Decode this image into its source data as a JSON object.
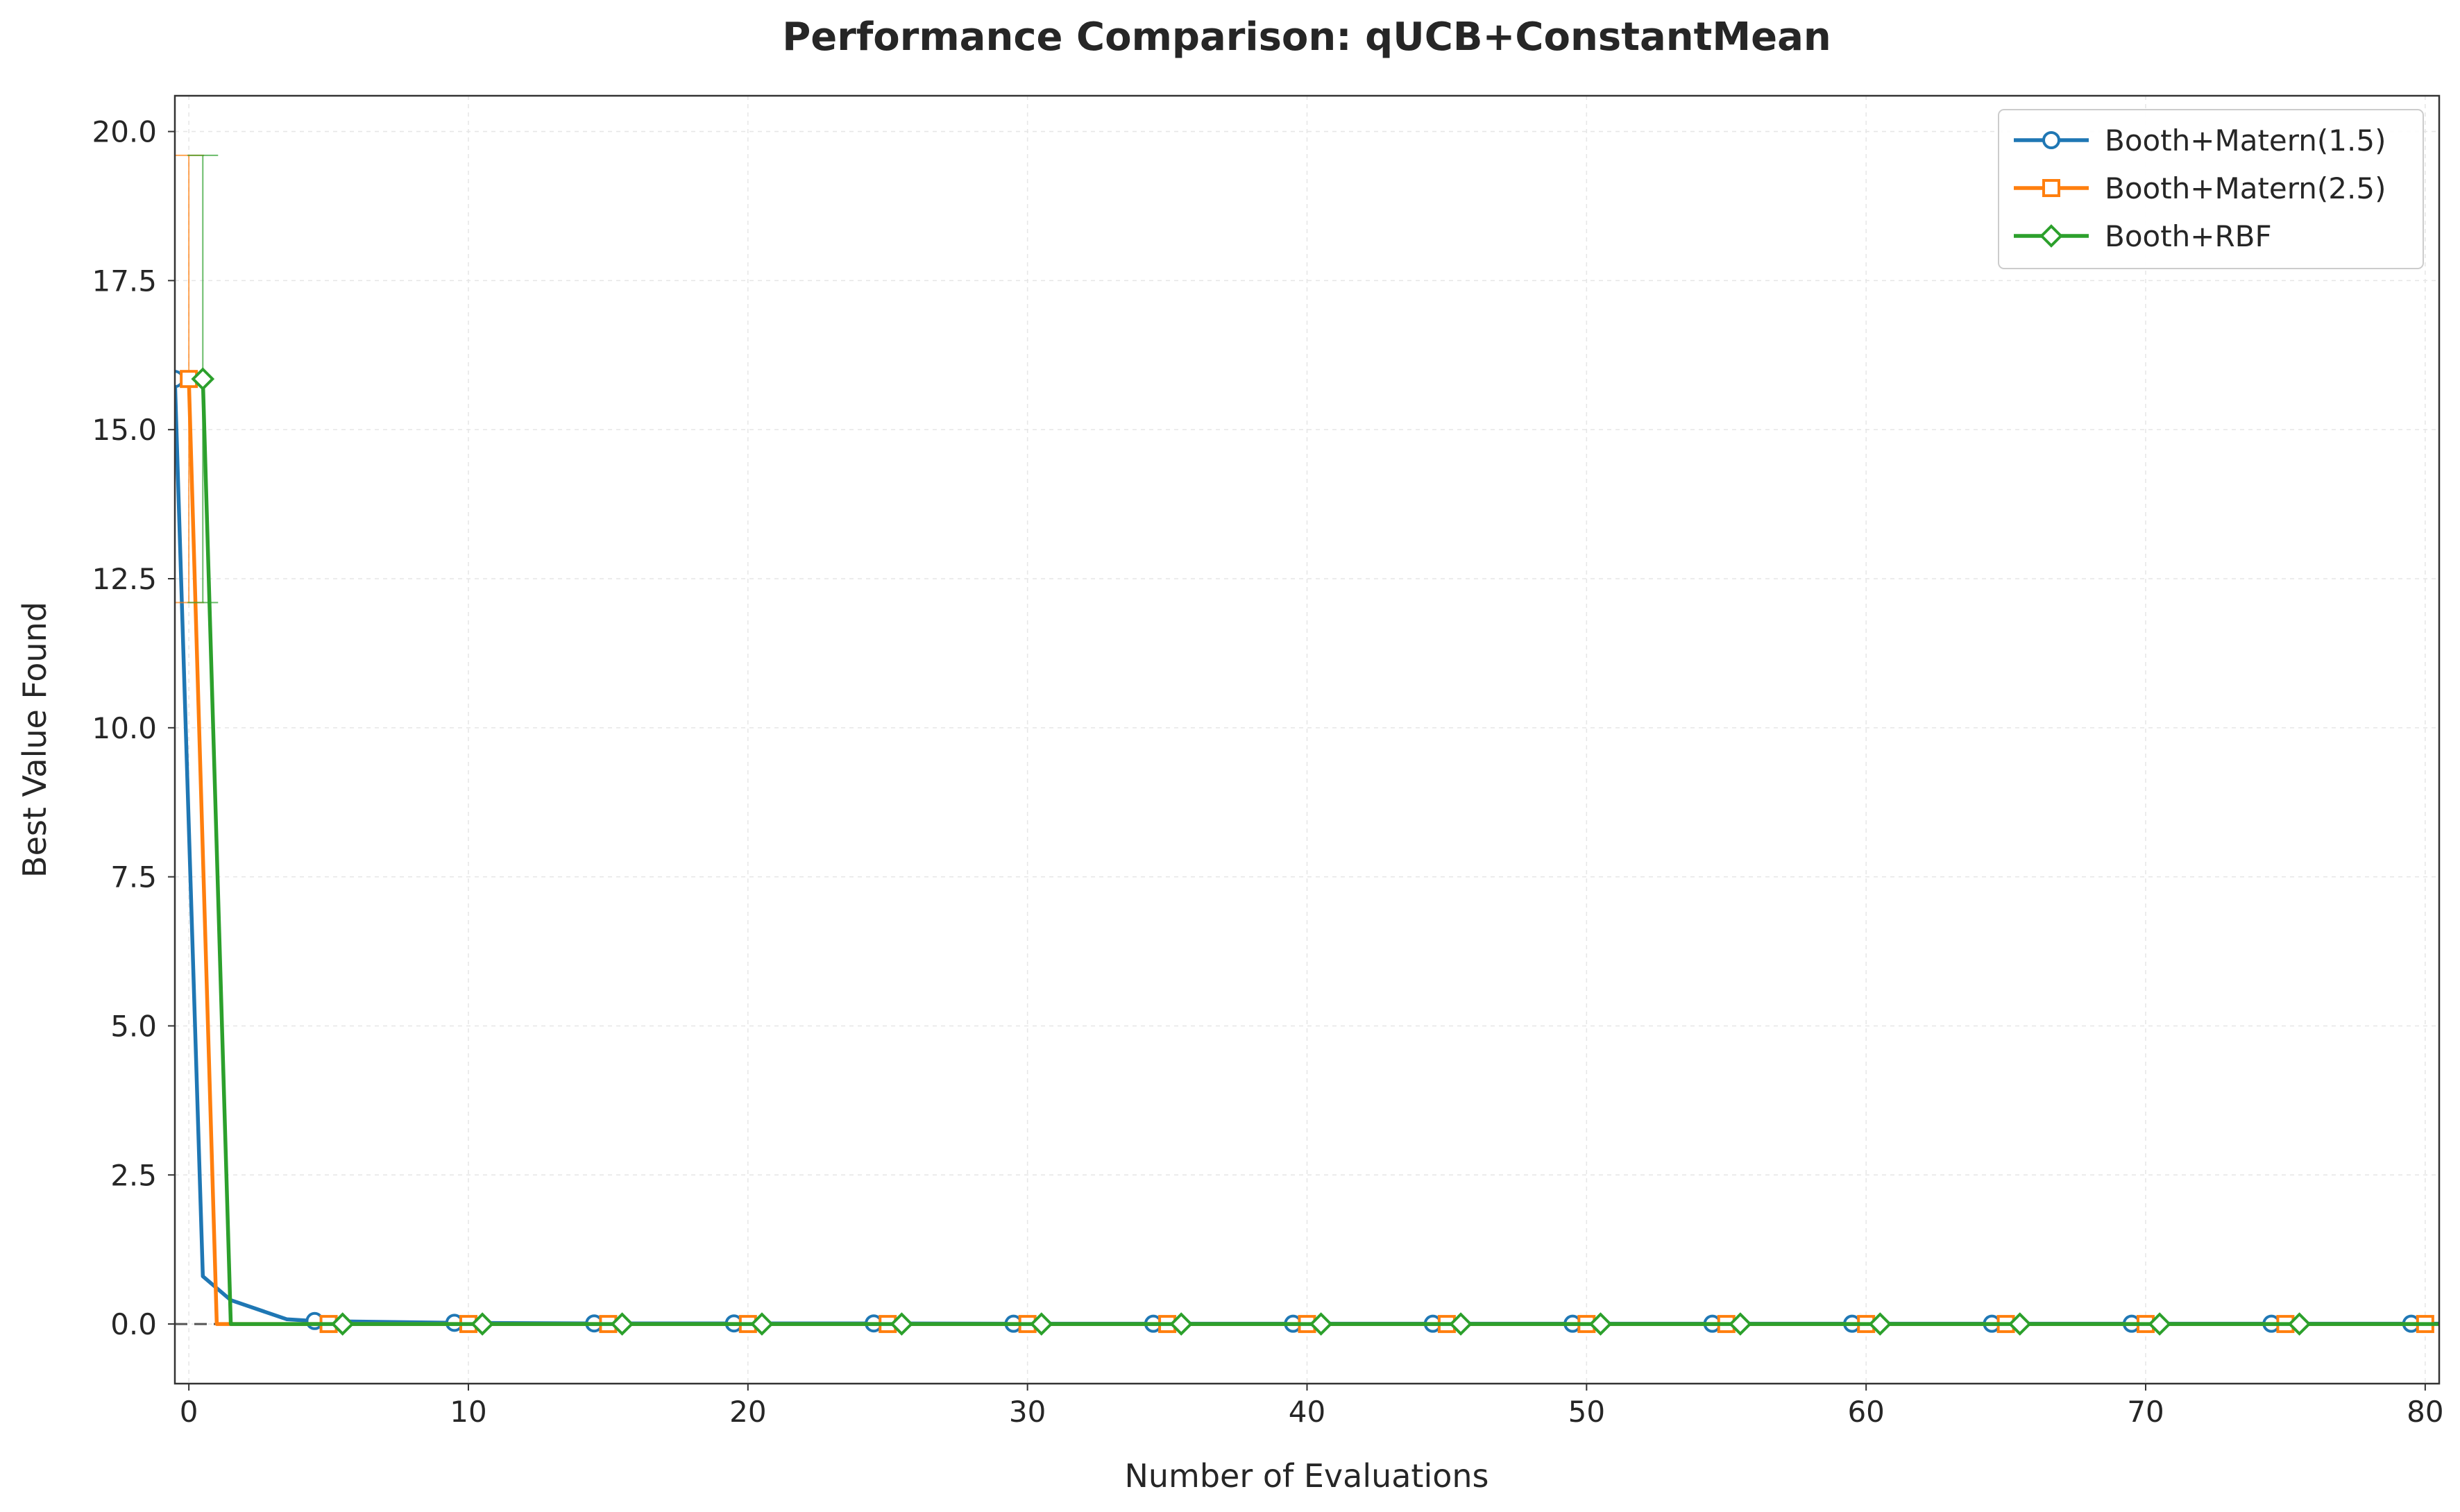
{
  "chart_data": {
    "type": "line",
    "title": "Performance Comparison: qUCB+ConstantMean",
    "xlabel": "Number of Evaluations",
    "ylabel": "Best Value Found",
    "xlim": [
      -0.5,
      80.5
    ],
    "ylim": [
      -1.0,
      20.6
    ],
    "xticks": [
      0,
      10,
      20,
      30,
      40,
      50,
      60,
      70,
      80
    ],
    "xtick_labels": [
      "0",
      "10",
      "20",
      "30",
      "40",
      "50",
      "60",
      "70",
      "80"
    ],
    "yticks": [
      0.0,
      2.5,
      5.0,
      7.5,
      10.0,
      12.5,
      15.0,
      17.5,
      20.0
    ],
    "ytick_labels": [
      "0.0",
      "2.5",
      "5.0",
      "7.5",
      "10.0",
      "12.5",
      "15.0",
      "17.5",
      "20.0"
    ],
    "grid": true,
    "legend_position": "top-right",
    "reference_line": {
      "y": 0,
      "style": "dashed",
      "color": "#555555"
    },
    "series": [
      {
        "name": "Booth+Matern(1.5)",
        "color": "#1f77b4",
        "marker": "circle",
        "x": [
          -0.5,
          0.5,
          1.5,
          3.5,
          4.5,
          9.5,
          14.5,
          19.5,
          24.5,
          29.5,
          34.5,
          39.5,
          44.5,
          49.5,
          54.5,
          59.5,
          64.5,
          69.5,
          74.5,
          79.5,
          80.5
        ],
        "y": [
          15.85,
          0.8,
          0.4,
          0.08,
          0.05,
          0.02,
          0.01,
          0.01,
          0.01,
          0.005,
          0.005,
          0.005,
          0.005,
          0.005,
          0.005,
          0.005,
          0.005,
          0.005,
          0.005,
          0.005,
          0.005
        ],
        "markers_x": [
          -0.5,
          4.5,
          9.5,
          14.5,
          19.5,
          24.5,
          29.5,
          34.5,
          39.5,
          44.5,
          49.5,
          54.5,
          59.5,
          64.5,
          69.5,
          74.5,
          79.5
        ]
      },
      {
        "name": "Booth+Matern(2.5)",
        "color": "#ff7f0e",
        "marker": "square",
        "x": [
          0.0,
          1.0,
          5.0,
          10.0,
          15.0,
          20.0,
          25.0,
          30.0,
          35.0,
          40.0,
          45.0,
          50.0,
          55.0,
          60.0,
          65.0,
          70.0,
          75.0,
          80.0
        ],
        "y": [
          15.85,
          0.0,
          0.0,
          0.0,
          0.0,
          0.0,
          0.0,
          0.0,
          0.0,
          0.0,
          0.0,
          0.0,
          0.0,
          0.0,
          0.0,
          0.0,
          0.0,
          0.0
        ],
        "markers_x": [
          0.0,
          5.0,
          10.0,
          15.0,
          20.0,
          25.0,
          30.0,
          35.0,
          40.0,
          45.0,
          50.0,
          55.0,
          60.0,
          65.0,
          70.0,
          75.0,
          80.0
        ],
        "error_bars": [
          {
            "x": 0.0,
            "low": 12.1,
            "high": 19.6
          }
        ]
      },
      {
        "name": "Booth+RBF",
        "color": "#2ca02c",
        "marker": "diamond",
        "x": [
          0.5,
          1.5,
          5.5,
          10.5,
          15.5,
          20.5,
          25.5,
          30.5,
          35.5,
          40.5,
          45.5,
          50.5,
          55.5,
          60.5,
          65.5,
          70.5,
          75.5,
          80.5
        ],
        "y": [
          15.85,
          0.0,
          0.0,
          0.0,
          0.0,
          0.0,
          0.0,
          0.0,
          0.0,
          0.0,
          0.0,
          0.0,
          0.0,
          0.0,
          0.0,
          0.0,
          0.0,
          0.0
        ],
        "markers_x": [
          0.5,
          5.5,
          10.5,
          15.5,
          20.5,
          25.5,
          30.5,
          35.5,
          40.5,
          45.5,
          50.5,
          55.5,
          60.5,
          65.5,
          70.5,
          75.5
        ],
        "error_bars": [
          {
            "x": 0.5,
            "low": 12.1,
            "high": 19.6
          }
        ]
      }
    ]
  }
}
